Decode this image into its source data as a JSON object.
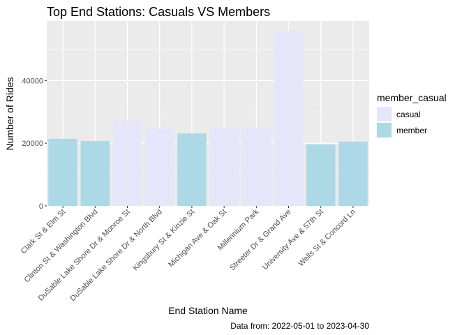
{
  "chart_data": {
    "type": "bar",
    "title": "Top End Stations: Casuals VS Members",
    "xlabel": "End Station Name",
    "ylabel": "Number of Rides",
    "caption": "Data from: 2022-05-01 to 2023-04-30",
    "legend_title": "member_casual",
    "legend_position": "right",
    "grid": true,
    "ylim": [
      0,
      59000
    ],
    "yticks": [
      0,
      20000,
      40000
    ],
    "ytick_labels": [
      "0",
      "20000",
      "40000"
    ],
    "categories": [
      "Clark St & Elm St",
      "Clinton St & Washington Blvd",
      "DuSable Lake Shore Dr & Monroe St",
      "DuSable Lake Shore Dr & North Blvd",
      "Kingsbury St & Kinzie St",
      "Michigan Ave & Oak St",
      "Millennium Park",
      "Streeter Dr & Grand Ave",
      "University Ave & 57th St",
      "Wells St & Concord Ln"
    ],
    "bars": [
      {
        "category": "Clark St & Elm St",
        "group": "member",
        "value": 21400
      },
      {
        "category": "Clinton St & Washington Blvd",
        "group": "member",
        "value": 20700
      },
      {
        "category": "DuSable Lake Shore Dr & Monroe St",
        "group": "casual",
        "value": 27200
      },
      {
        "category": "DuSable Lake Shore Dr & North Blvd",
        "group": "casual",
        "value": 24600
      },
      {
        "category": "Kingsbury St & Kinzie St",
        "group": "member",
        "value": 23100
      },
      {
        "category": "Michigan Ave & Oak St",
        "group": "casual",
        "value": 24900
      },
      {
        "category": "Millennium Park",
        "group": "casual",
        "value": 24900
      },
      {
        "category": "Streeter Dr & Grand Ave",
        "group": "casual",
        "value": 55900
      },
      {
        "category": "University Ave & 57th St",
        "group": "member",
        "value": 19600
      },
      {
        "category": "Wells St & Concord Ln",
        "group": "member",
        "value": 20500
      }
    ],
    "legend": [
      {
        "name": "casual",
        "color": "#e6e6fa"
      },
      {
        "name": "member",
        "color": "#add8e6"
      }
    ],
    "colors": {
      "casual": "#e6e6fa",
      "member": "#add8e6",
      "panel": "#ebebeb",
      "grid": "#ffffff"
    }
  }
}
